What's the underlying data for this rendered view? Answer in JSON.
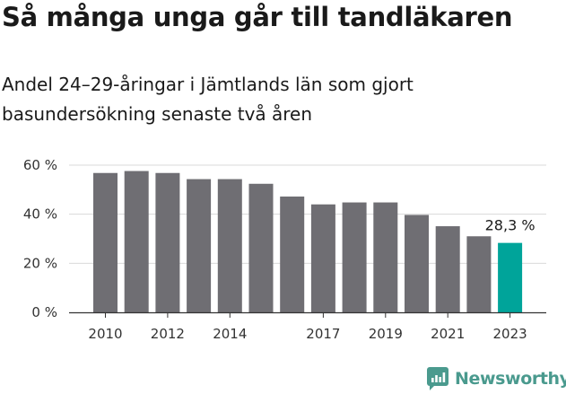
{
  "title": "Så många unga går till tandläkaren",
  "subtitle": "Andel 24–29-åringar i Jämtlands län som gjort basundersökning senaste två åren",
  "brand": {
    "name": "Newsworthy",
    "color": "#4a9a8e",
    "icon": "chart-speech-bubble-icon"
  },
  "chart_data": {
    "type": "bar",
    "categories": [
      "2010",
      "2011",
      "2012",
      "2013",
      "2014",
      "2015",
      "2016",
      "2017",
      "2018",
      "2019",
      "2020",
      "2021",
      "2022",
      "2023"
    ],
    "x_tick_labels": [
      "2010",
      "",
      "2012",
      "",
      "2014",
      "",
      "",
      "2017",
      "",
      "2019",
      "",
      "2021",
      "",
      "2023"
    ],
    "values": [
      56.8,
      57.6,
      56.8,
      54.3,
      54.3,
      52.4,
      47.2,
      44.0,
      44.8,
      44.8,
      39.7,
      35.1,
      31.0,
      28.3
    ],
    "ylim": [
      0,
      60
    ],
    "y_ticks": [
      0,
      20,
      40,
      60
    ],
    "y_tick_labels": [
      "0 %",
      "20 %",
      "40 %",
      "60 %"
    ],
    "annotation": "28,3 %",
    "bar_color": "#6f6e73",
    "highlight_color": "#00a49a",
    "highlight_index": 13,
    "grid": true
  }
}
